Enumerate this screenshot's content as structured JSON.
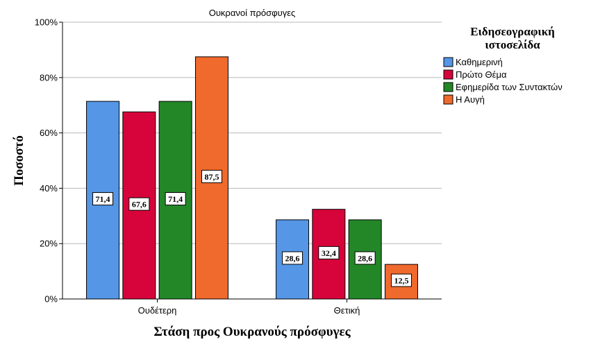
{
  "chart_data": {
    "type": "bar",
    "title": "Ουκρανοί πρόσφυγες",
    "xlabel": "Στάση προς Ουκρανούς πρόσφυγες",
    "ylabel": "Ποσοστό",
    "ylim": [
      0,
      100
    ],
    "y_ticks": [
      "0%",
      "20%",
      "40%",
      "60%",
      "80%",
      "100%"
    ],
    "grid": true,
    "legend_position": "top-right",
    "legend_title": "Ειδησεογραφική ιστοσελίδα",
    "categories": [
      "Ουδέτερη",
      "Θετική"
    ],
    "series": [
      {
        "name": "Καθημερινή",
        "color": "#5596e6",
        "values": [
          71.4,
          28.6
        ],
        "labels": [
          "71,4",
          "28,6"
        ]
      },
      {
        "name": "Πρώτο Θέμα",
        "color": "#d6043a",
        "values": [
          67.6,
          32.4
        ],
        "labels": [
          "67,6",
          "32,4"
        ]
      },
      {
        "name": "Εφημερίδα των Συντακτών",
        "color": "#238728",
        "values": [
          71.4,
          28.6
        ],
        "labels": [
          "71,4",
          "28,6"
        ]
      },
      {
        "name": "Η Αυγή",
        "color": "#f0692d",
        "values": [
          87.5,
          12.5
        ],
        "labels": [
          "87,5",
          "12,5"
        ]
      }
    ]
  }
}
